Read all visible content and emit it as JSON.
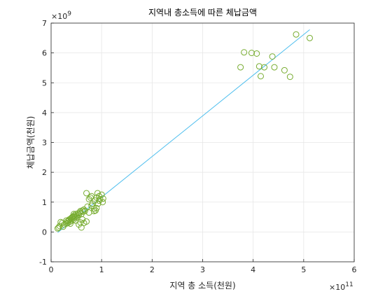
{
  "chart_data": {
    "type": "scatter",
    "title": "지역내 총소득에 따른 체납금액",
    "xlabel": "지역 총 소득(천원)",
    "ylabel": "체납금액(천원)",
    "x_exponent_label": "×10",
    "x_exponent": "11",
    "y_exponent_label": "×10",
    "y_exponent": "9",
    "xlim": [
      0,
      6
    ],
    "ylim": [
      -1,
      7
    ],
    "xticks": [
      "0",
      "1",
      "2",
      "3",
      "4",
      "5",
      "6"
    ],
    "yticks": [
      "-1",
      "0",
      "1",
      "2",
      "3",
      "4",
      "5",
      "6",
      "7"
    ],
    "grid": true,
    "colors": {
      "points": "#77ac30",
      "fit_line": "#4dbeee",
      "grid": "#e6e6e6",
      "axis": "#262626"
    },
    "series": [
      {
        "x": [
          0.13,
          0.15,
          0.17,
          0.19,
          0.22,
          0.24,
          0.26,
          0.3,
          0.32,
          0.33,
          0.35,
          0.36,
          0.38,
          0.39,
          0.4,
          0.41,
          0.42,
          0.43,
          0.44,
          0.45,
          0.46,
          0.47,
          0.48,
          0.49,
          0.5,
          0.52,
          0.53,
          0.55,
          0.57,
          0.58,
          0.6,
          0.62,
          0.63,
          0.65,
          0.67,
          0.7,
          0.72,
          0.75,
          0.78,
          0.8,
          0.82,
          0.85,
          0.87,
          0.9,
          0.92,
          0.95,
          0.97,
          1.0,
          1.02,
          1.03,
          0.55,
          0.6,
          0.65,
          0.7,
          0.75,
          0.85,
          0.9,
          0.95,
          0.62,
          0.58,
          0.38,
          0.45,
          0.3,
          0.8,
          0.88,
          0.93,
          3.75,
          3.82,
          3.97,
          4.07,
          4.12,
          4.15,
          4.22,
          4.38,
          4.42,
          4.62,
          4.73,
          4.85,
          5.12
        ],
        "y": [
          0.12,
          0.15,
          0.2,
          0.33,
          0.3,
          0.18,
          0.25,
          0.28,
          0.35,
          0.3,
          0.38,
          0.42,
          0.35,
          0.45,
          0.4,
          0.48,
          0.5,
          0.45,
          0.52,
          0.42,
          0.55,
          0.5,
          0.38,
          0.6,
          0.48,
          0.55,
          0.62,
          0.58,
          0.65,
          0.7,
          0.6,
          0.72,
          0.68,
          0.75,
          0.7,
          1.3,
          0.85,
          1.1,
          1.15,
          1.2,
          0.95,
          0.78,
          1.05,
          1.15,
          1.3,
          1.2,
          1.1,
          1.25,
          1.0,
          1.12,
          0.25,
          0.15,
          0.3,
          0.35,
          0.65,
          0.7,
          0.8,
          1.05,
          0.42,
          0.32,
          0.28,
          0.6,
          0.38,
          0.88,
          0.72,
          0.95,
          5.52,
          6.02,
          6.0,
          5.98,
          5.55,
          5.22,
          5.52,
          5.88,
          5.52,
          5.42,
          5.2,
          6.62,
          6.5
        ]
      }
    ],
    "fit_line": {
      "x": [
        0.13,
        5.12
      ],
      "y": [
        -0.02,
        6.78
      ]
    }
  }
}
